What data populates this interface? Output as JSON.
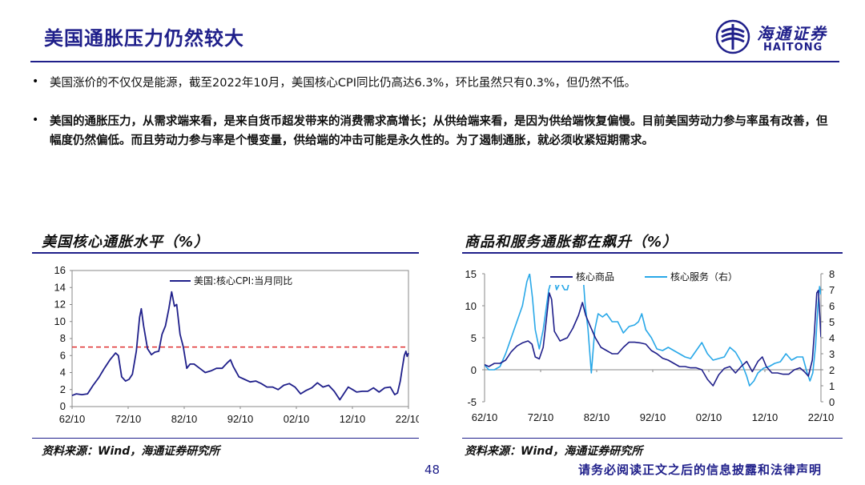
{
  "slide": {
    "title": "美国通胀压力仍然较大",
    "page_number": "48",
    "disclaimer": "请务必阅读正文之后的信息披露和法律声明"
  },
  "logo": {
    "cn": "海通证券",
    "en": "HAITONG",
    "brand_color": "#1f1f8a"
  },
  "bullets": [
    {
      "symbol": "•",
      "text": "美国涨价的不仅仅是能源，截至2022年10月，美国核心CPI同比仍高达6.3%，环比虽然只有0.3%，但仍然不低。"
    },
    {
      "symbol": "•",
      "text": "美国的通胀压力，从需求端来看，是来自货币超发带来的消费需求高增长；从供给端来看，是因为供给端恢复偏慢。目前美国劳动力参与率虽有改善，但幅度仍然偏低。而且劳动力参与率是个慢变量，供给端的冲击可能是永久性的。为了遏制通胀，就必须收紧短期需求。"
    }
  ],
  "chart_titles": [
    "美国核心通胀水平（%）",
    "商品和服务通胀都在飙升（%）"
  ],
  "sources": [
    "资料来源：Wind，海通证券研究所",
    "资料来源：Wind，海通证券研究所"
  ],
  "chart_data": [
    {
      "type": "line",
      "title": "美国核心通胀水平（%）",
      "x_tick_labels": [
        "62/10",
        "72/10",
        "82/10",
        "92/10",
        "02/10",
        "12/10",
        "22/10"
      ],
      "x_range": [
        1962.75,
        2022.75
      ],
      "ylim": [
        0,
        16
      ],
      "y_ticks": [
        0,
        2,
        4,
        6,
        8,
        10,
        12,
        14,
        16
      ],
      "legend": "top-left",
      "reference_line": {
        "y": 7,
        "style": "dashed",
        "color": "#e03030"
      },
      "series": [
        {
          "name": "美国:核心CPI:当月同比",
          "color": "#1f1f8a",
          "points": [
            [
              1962.75,
              1.3
            ],
            [
              1963.5,
              1.5
            ],
            [
              1964.5,
              1.4
            ],
            [
              1965.5,
              1.5
            ],
            [
              1966.5,
              2.5
            ],
            [
              1967.5,
              3.4
            ],
            [
              1968.5,
              4.5
            ],
            [
              1969.5,
              5.5
            ],
            [
              1970.5,
              6.3
            ],
            [
              1971.0,
              6.0
            ],
            [
              1971.6,
              3.5
            ],
            [
              1972.3,
              3.0
            ],
            [
              1972.9,
              3.2
            ],
            [
              1973.5,
              3.8
            ],
            [
              1974.2,
              6.5
            ],
            [
              1974.8,
              10.5
            ],
            [
              1975.1,
              11.5
            ],
            [
              1975.5,
              9.5
            ],
            [
              1976.2,
              6.8
            ],
            [
              1976.9,
              6.1
            ],
            [
              1977.5,
              6.4
            ],
            [
              1978.2,
              6.5
            ],
            [
              1978.8,
              8.5
            ],
            [
              1979.4,
              9.5
            ],
            [
              1980.0,
              11.5
            ],
            [
              1980.5,
              13.5
            ],
            [
              1981.0,
              11.8
            ],
            [
              1981.4,
              12.0
            ],
            [
              1982.0,
              8.5
            ],
            [
              1982.6,
              7.0
            ],
            [
              1983.2,
              4.5
            ],
            [
              1983.8,
              5.0
            ],
            [
              1984.5,
              5.0
            ],
            [
              1985.5,
              4.5
            ],
            [
              1986.5,
              4.0
            ],
            [
              1987.5,
              4.2
            ],
            [
              1988.5,
              4.5
            ],
            [
              1989.5,
              4.5
            ],
            [
              1990.5,
              5.2
            ],
            [
              1991.0,
              5.5
            ],
            [
              1991.5,
              4.7
            ],
            [
              1992.5,
              3.5
            ],
            [
              1993.5,
              3.2
            ],
            [
              1994.5,
              2.9
            ],
            [
              1995.5,
              3.0
            ],
            [
              1996.5,
              2.7
            ],
            [
              1997.5,
              2.3
            ],
            [
              1998.5,
              2.3
            ],
            [
              1999.5,
              2.0
            ],
            [
              2000.5,
              2.5
            ],
            [
              2001.5,
              2.7
            ],
            [
              2002.5,
              2.3
            ],
            [
              2003.5,
              1.5
            ],
            [
              2004.5,
              1.9
            ],
            [
              2005.5,
              2.2
            ],
            [
              2006.5,
              2.8
            ],
            [
              2007.5,
              2.3
            ],
            [
              2008.5,
              2.5
            ],
            [
              2009.5,
              1.8
            ],
            [
              2010.5,
              0.8
            ],
            [
              2011.5,
              1.8
            ],
            [
              2012.0,
              2.3
            ],
            [
              2012.8,
              2.0
            ],
            [
              2013.5,
              1.7
            ],
            [
              2014.5,
              1.8
            ],
            [
              2015.5,
              1.8
            ],
            [
              2016.5,
              2.2
            ],
            [
              2017.5,
              1.7
            ],
            [
              2018.5,
              2.2
            ],
            [
              2019.5,
              2.3
            ],
            [
              2020.3,
              1.4
            ],
            [
              2020.8,
              1.6
            ],
            [
              2021.3,
              3.0
            ],
            [
              2021.6,
              4.3
            ],
            [
              2022.0,
              6.0
            ],
            [
              2022.3,
              6.5
            ],
            [
              2022.5,
              5.9
            ],
            [
              2022.75,
              6.3
            ]
          ]
        }
      ]
    },
    {
      "type": "line",
      "title": "商品和服务通胀都在飙升（%）",
      "x_tick_labels": [
        "62/10",
        "72/10",
        "82/10",
        "92/10",
        "02/10",
        "12/10",
        "22/10"
      ],
      "x_range": [
        1962.75,
        2022.75
      ],
      "ylim_left": [
        -5,
        15
      ],
      "y_ticks_left": [
        -5,
        0,
        5,
        10,
        15
      ],
      "ylim_right": [
        0,
        8
      ],
      "y_ticks_right": [
        0,
        1,
        2,
        3,
        4,
        5,
        6,
        7,
        8
      ],
      "legend": "top",
      "series": [
        {
          "name": "核心商品",
          "axis": "left",
          "color": "#1f1f8a",
          "points": [
            [
              1962.75,
              0.8
            ],
            [
              1963.5,
              0.5
            ],
            [
              1964.5,
              1.0
            ],
            [
              1965.5,
              1.0
            ],
            [
              1966.5,
              1.5
            ],
            [
              1967.5,
              2.8
            ],
            [
              1968.5,
              3.7
            ],
            [
              1969.5,
              4.2
            ],
            [
              1970.5,
              4.5
            ],
            [
              1971.2,
              4.0
            ],
            [
              1971.8,
              2.0
            ],
            [
              1972.5,
              1.7
            ],
            [
              1973.2,
              3.5
            ],
            [
              1973.8,
              8.0
            ],
            [
              1974.3,
              12.0
            ],
            [
              1974.7,
              11.0
            ],
            [
              1975.2,
              6.0
            ],
            [
              1976.2,
              4.5
            ],
            [
              1977.5,
              5.0
            ],
            [
              1978.5,
              6.5
            ],
            [
              1979.5,
              8.5
            ],
            [
              1980.2,
              10.5
            ],
            [
              1980.8,
              8.5
            ],
            [
              1981.5,
              7.0
            ],
            [
              1982.5,
              5.0
            ],
            [
              1983.5,
              3.5
            ],
            [
              1984.5,
              3.0
            ],
            [
              1985.5,
              2.5
            ],
            [
              1986.5,
              2.5
            ],
            [
              1987.5,
              3.5
            ],
            [
              1988.5,
              4.3
            ],
            [
              1989.5,
              4.3
            ],
            [
              1990.5,
              4.2
            ],
            [
              1991.5,
              4.0
            ],
            [
              1992.5,
              3.0
            ],
            [
              1993.5,
              2.5
            ],
            [
              1994.5,
              1.8
            ],
            [
              1995.5,
              1.5
            ],
            [
              1996.5,
              1.0
            ],
            [
              1997.5,
              0.5
            ],
            [
              1998.5,
              0.5
            ],
            [
              1999.5,
              0.3
            ],
            [
              2000.5,
              0.3
            ],
            [
              2001.5,
              0.0
            ],
            [
              2002.5,
              -1.5
            ],
            [
              2003.5,
              -2.5
            ],
            [
              2004.5,
              -0.8
            ],
            [
              2005.5,
              0.2
            ],
            [
              2006.5,
              0.5
            ],
            [
              2007.5,
              -0.5
            ],
            [
              2008.5,
              0.5
            ],
            [
              2009.5,
              1.3
            ],
            [
              2010.5,
              -0.3
            ],
            [
              2011.5,
              1.3
            ],
            [
              2012.3,
              2.0
            ],
            [
              2013.0,
              0.5
            ],
            [
              2014.0,
              -0.5
            ],
            [
              2015.0,
              -0.5
            ],
            [
              2016.0,
              -0.7
            ],
            [
              2017.0,
              -0.7
            ],
            [
              2018.0,
              0.0
            ],
            [
              2019.0,
              0.3
            ],
            [
              2019.8,
              -0.3
            ],
            [
              2020.5,
              -1.0
            ],
            [
              2021.2,
              1.5
            ],
            [
              2021.6,
              6.0
            ],
            [
              2022.0,
              12.0
            ],
            [
              2022.3,
              12.4
            ],
            [
              2022.75,
              5.1
            ]
          ]
        },
        {
          "name": "核心服务（右）",
          "axis": "right",
          "color": "#29a8e8",
          "points": [
            [
              1962.75,
              2.3
            ],
            [
              1963.5,
              2.0
            ],
            [
              1964.5,
              2.0
            ],
            [
              1965.5,
              2.2
            ],
            [
              1966.5,
              3.0
            ],
            [
              1967.5,
              4.0
            ],
            [
              1968.5,
              5.0
            ],
            [
              1969.5,
              6.0
            ],
            [
              1970.3,
              7.5
            ],
            [
              1970.8,
              8.0
            ],
            [
              1971.3,
              6.5
            ],
            [
              1971.8,
              4.5
            ],
            [
              1972.5,
              3.3
            ],
            [
              1973.2,
              4.5
            ],
            [
              1974.2,
              7.0
            ],
            [
              1975.0,
              8.0
            ],
            [
              1975.6,
              7.0
            ],
            [
              1976.3,
              7.5
            ],
            [
              1977.0,
              7.0
            ],
            [
              1977.5,
              7.0
            ],
            [
              1978.2,
              8.0
            ],
            [
              1978.5,
              7.5
            ],
            [
              1979.5,
              8.0
            ],
            [
              1980.3,
              8.0
            ],
            [
              1980.7,
              6.0
            ],
            [
              1981.2,
              4.5
            ],
            [
              1981.8,
              1.8
            ],
            [
              1982.4,
              4.5
            ],
            [
              1983.0,
              5.5
            ],
            [
              1983.8,
              5.3
            ],
            [
              1984.5,
              5.5
            ],
            [
              1985.5,
              5.0
            ],
            [
              1986.5,
              5.0
            ],
            [
              1987.5,
              4.3
            ],
            [
              1988.5,
              4.7
            ],
            [
              1989.5,
              4.8
            ],
            [
              1990.2,
              5.0
            ],
            [
              1990.8,
              5.5
            ],
            [
              1991.5,
              4.5
            ],
            [
              1992.5,
              4.0
            ],
            [
              1993.5,
              3.3
            ],
            [
              1994.5,
              3.2
            ],
            [
              1995.5,
              3.4
            ],
            [
              1996.5,
              3.2
            ],
            [
              1997.5,
              3.0
            ],
            [
              1998.5,
              2.8
            ],
            [
              1999.5,
              2.7
            ],
            [
              2000.5,
              3.2
            ],
            [
              2001.5,
              3.7
            ],
            [
              2002.5,
              3.0
            ],
            [
              2003.5,
              2.6
            ],
            [
              2004.5,
              2.7
            ],
            [
              2005.5,
              2.8
            ],
            [
              2006.5,
              3.4
            ],
            [
              2007.5,
              3.1
            ],
            [
              2008.5,
              2.5
            ],
            [
              2009.5,
              1.6
            ],
            [
              2010.0,
              1.0
            ],
            [
              2010.8,
              1.3
            ],
            [
              2011.5,
              1.8
            ],
            [
              2012.5,
              2.1
            ],
            [
              2013.5,
              2.2
            ],
            [
              2014.5,
              2.4
            ],
            [
              2015.5,
              2.5
            ],
            [
              2016.5,
              3.0
            ],
            [
              2017.5,
              2.6
            ],
            [
              2018.5,
              2.8
            ],
            [
              2019.5,
              2.8
            ],
            [
              2020.3,
              1.8
            ],
            [
              2020.8,
              1.3
            ],
            [
              2021.3,
              1.8
            ],
            [
              2021.8,
              3.5
            ],
            [
              2022.2,
              6.0
            ],
            [
              2022.5,
              7.2
            ],
            [
              2022.75,
              6.7
            ]
          ]
        }
      ]
    }
  ]
}
